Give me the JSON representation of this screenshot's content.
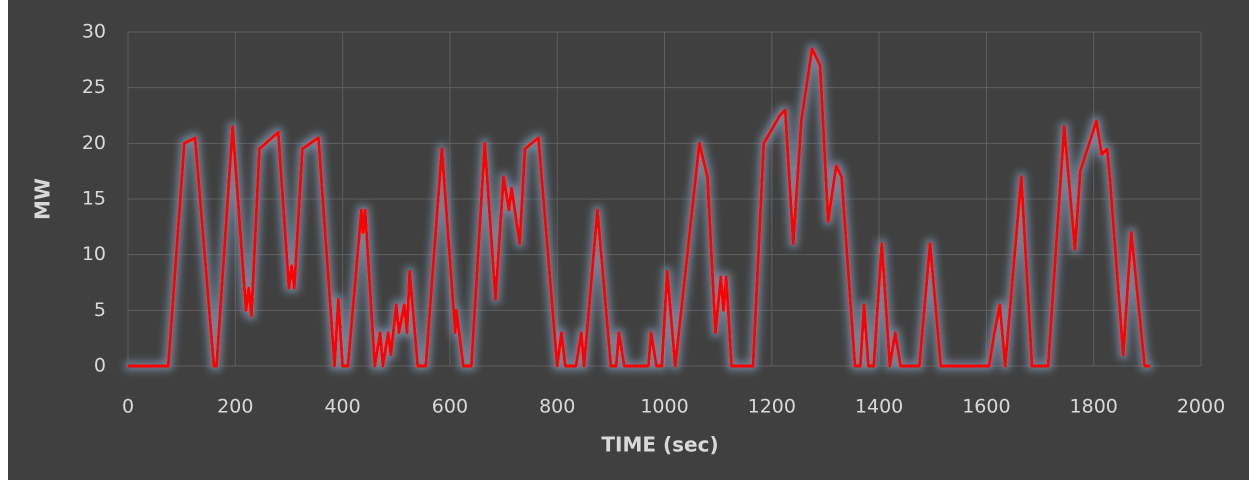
{
  "chart_data": {
    "type": "line",
    "xlabel": "TIME (sec)",
    "ylabel": "MW",
    "x": [
      0,
      75,
      105,
      125,
      160,
      165,
      195,
      220,
      225,
      230,
      245,
      280,
      300,
      305,
      310,
      325,
      355,
      385,
      392,
      400,
      410,
      435,
      438,
      442,
      460,
      470,
      475,
      485,
      490,
      500,
      505,
      515,
      520,
      525,
      540,
      555,
      585,
      610,
      612,
      625,
      640,
      665,
      685,
      700,
      710,
      715,
      730,
      740,
      765,
      800,
      808,
      815,
      835,
      845,
      850,
      875,
      900,
      910,
      915,
      925,
      970,
      975,
      985,
      995,
      1005,
      1020,
      1065,
      1080,
      1095,
      1105,
      1110,
      1115,
      1125,
      1165,
      1185,
      1215,
      1225,
      1240,
      1255,
      1275,
      1290,
      1305,
      1320,
      1330,
      1355,
      1365,
      1372,
      1380,
      1390,
      1405,
      1420,
      1430,
      1440,
      1475,
      1495,
      1515,
      1605,
      1615,
      1625,
      1635,
      1665,
      1685,
      1715,
      1745,
      1765,
      1775,
      1805,
      1815,
      1825,
      1830,
      1855,
      1870,
      1895,
      1905
    ],
    "values": [
      0,
      0,
      20,
      20.5,
      0,
      0,
      21.5,
      5,
      7,
      4.5,
      19.5,
      21,
      7,
      9,
      7,
      19.5,
      20.5,
      0,
      6,
      0,
      0,
      14,
      12,
      14,
      0,
      3,
      0,
      3,
      1,
      5.5,
      3,
      5.5,
      3,
      8.5,
      0,
      0,
      19.5,
      3,
      5,
      0,
      0,
      20,
      6,
      17,
      14,
      16,
      11,
      19.5,
      20.5,
      0,
      3,
      0,
      0,
      3,
      0,
      14,
      0,
      0,
      3,
      0,
      0,
      3,
      0,
      0,
      8.5,
      0,
      20,
      17,
      3,
      8,
      5,
      8,
      0,
      0,
      20,
      22.5,
      23,
      11,
      22,
      28.5,
      27,
      13,
      18,
      17,
      0,
      0,
      5.5,
      0,
      0,
      11,
      0,
      3,
      0,
      0,
      11,
      0,
      0,
      3,
      5.5,
      0,
      17,
      0,
      0,
      21.5,
      10.5,
      17.5,
      22,
      19,
      19.5,
      17,
      1,
      12,
      0,
      0
    ],
    "color": "#ff0000",
    "xlim": [
      0,
      2000
    ],
    "xticks": [
      0,
      200,
      400,
      600,
      800,
      1000,
      1200,
      1400,
      1600,
      1800,
      2000
    ],
    "ylim": [
      0,
      30
    ],
    "yticks": [
      0,
      5,
      10,
      15,
      20,
      25,
      30
    ],
    "grid": true
  }
}
